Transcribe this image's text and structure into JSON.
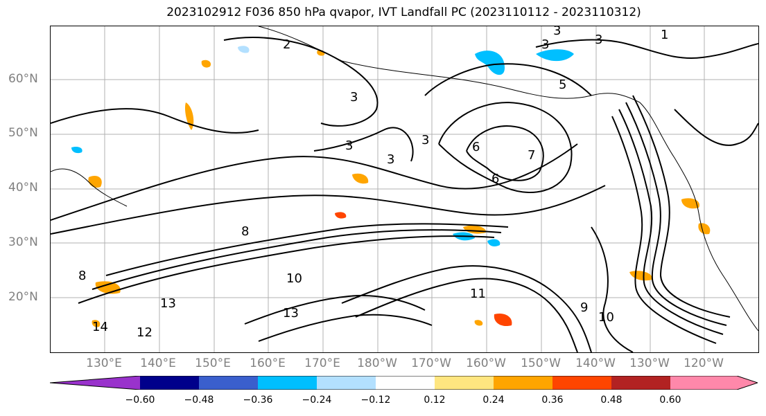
{
  "title": "2023102912 F036 850 hPa qvapor, IVT Landfall PC (2023110112 - 2023110312)",
  "map": {
    "lat_labels": [
      "60°N",
      "50°N",
      "40°N",
      "30°N",
      "20°N"
    ],
    "lon_labels": [
      "130°E",
      "140°E",
      "150°E",
      "160°E",
      "170°E",
      "180°W",
      "170°W",
      "160°W",
      "150°W",
      "140°W",
      "130°W",
      "120°W"
    ],
    "contour_labels": [
      "1",
      "2",
      "3",
      "3",
      "3",
      "3",
      "3",
      "3",
      "3",
      "5",
      "6",
      "6",
      "7",
      "8",
      "8",
      "9",
      "10",
      "10",
      "11",
      "12",
      "13",
      "13",
      "14"
    ],
    "colors": {
      "contour": "#000000",
      "coast": "#000000",
      "grid": "#b0b0b0",
      "neg_light": "#b3e0ff",
      "neg": "#00bfff",
      "pos_light": "#ffe680",
      "pos": "#ffa500",
      "pos_dark": "#ff4500"
    }
  },
  "colorbar": {
    "ticks": [
      "−0.60",
      "−0.48",
      "−0.36",
      "−0.24",
      "−0.12",
      "0.12",
      "0.24",
      "0.36",
      "0.48",
      "0.60"
    ],
    "colors": [
      "#9932cc",
      "#00008b",
      "#3a5fcd",
      "#00bfff",
      "#b3e0ff",
      "#ffffff",
      "#ffe680",
      "#ffa500",
      "#ff4500",
      "#b22222",
      "#ff88aa"
    ]
  }
}
